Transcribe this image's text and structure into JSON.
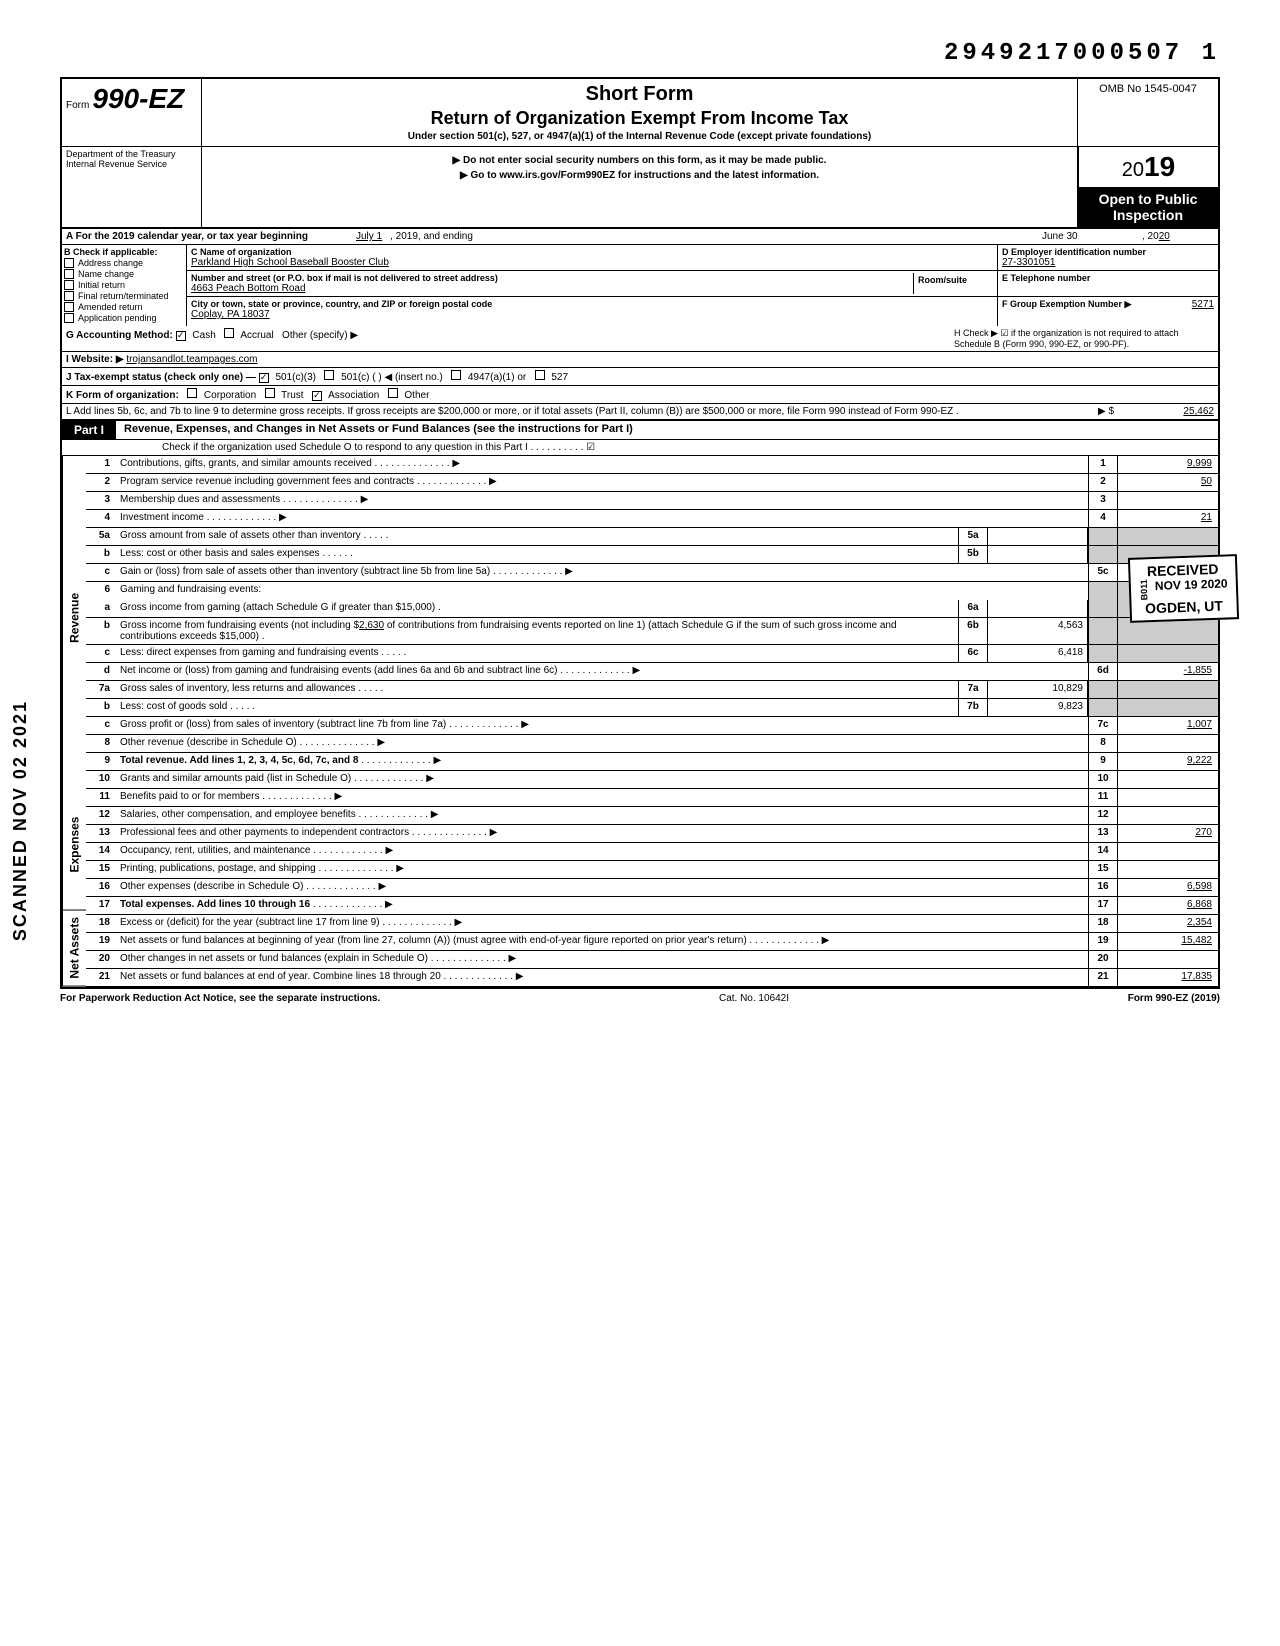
{
  "doc_number": "2949217000507 1",
  "form": {
    "prefix": "Form",
    "number": "990-EZ",
    "short_form": "Short Form",
    "title": "Return of Organization Exempt From Income Tax",
    "section_text": "Under section 501(c), 527, or 4947(a)(1) of the Internal Revenue Code (except private foundations)",
    "ssn_warning": "Do not enter social security numbers on this form, as it may be made public.",
    "goto_text": "Go to www.irs.gov/Form990EZ for instructions and the latest information.",
    "omb": "OMB No 1545-0047",
    "year": "2019",
    "open_public": "Open to Public Inspection",
    "dept": "Department of the Treasury",
    "irs": "Internal Revenue Service"
  },
  "row_a": {
    "label": "A For the 2019 calendar year, or tax year beginning",
    "begin": "July 1",
    "mid": ", 2019, and ending",
    "end_month": "June 30",
    "end_year_prefix": ", 20",
    "end_year": "20"
  },
  "section_b": {
    "header": "B Check if applicable:",
    "items": [
      "Address change",
      "Name change",
      "Initial return",
      "Final return/terminated",
      "Amended return",
      "Application pending"
    ]
  },
  "section_c": {
    "name_label": "C Name of organization",
    "name": "Parkland High School Baseball Booster Club",
    "street_label": "Number and street (or P.O. box if mail is not delivered to street address)",
    "street": "4663 Peach Bottom Road",
    "city_label": "City or town, state or province, country, and ZIP or foreign postal code",
    "city": "Coplay, PA 18037",
    "room_suite": "Room/suite"
  },
  "section_d": {
    "ein_label": "D Employer identification number",
    "ein": "27-3301051",
    "phone_label": "E Telephone number",
    "group_label": "F Group Exemption Number ▶",
    "group": "5271"
  },
  "row_g": {
    "label": "G Accounting Method:",
    "cash": "Cash",
    "accrual": "Accrual",
    "other": "Other (specify) ▶"
  },
  "row_h": {
    "text": "H Check ▶ ☑ if the organization is not required to attach Schedule B (Form 990, 990-EZ, or 990-PF)."
  },
  "row_i": {
    "label": "I Website: ▶",
    "value": "trojansandlot.teampages.com"
  },
  "row_j": {
    "label": "J Tax-exempt status (check only one) —",
    "opt1": "501(c)(3)",
    "opt2": "501(c) (",
    "opt2b": ") ◀ (insert no.)",
    "opt3": "4947(a)(1) or",
    "opt4": "527"
  },
  "row_k": {
    "label": "K Form of organization:",
    "corp": "Corporation",
    "trust": "Trust",
    "assoc": "Association",
    "other": "Other"
  },
  "row_l": {
    "text": "L Add lines 5b, 6c, and 7b to line 9 to determine gross receipts. If gross receipts are $200,000 or more, or if total assets (Part II, column (B)) are $500,000 or more, file Form 990 instead of Form 990-EZ .",
    "arrow": "▶ $",
    "value": "25,462"
  },
  "part1": {
    "label": "Part I",
    "title": "Revenue, Expenses, and Changes in Net Assets or Fund Balances (see the instructions for Part I)",
    "schedule_o": "Check if the organization used Schedule O to respond to any question in this Part I . . . . . . . . . . ☑"
  },
  "revenue_label": "Revenue",
  "expenses_label": "Expenses",
  "net_assets_label": "Net Assets",
  "lines": {
    "l1": {
      "num": "1",
      "desc": "Contributions, gifts, grants, and similar amounts received .",
      "rn": "1",
      "rv": "9,999"
    },
    "l2": {
      "num": "2",
      "desc": "Program service revenue including government fees and contracts",
      "rn": "2",
      "rv": "50"
    },
    "l3": {
      "num": "3",
      "desc": "Membership dues and assessments .",
      "rn": "3",
      "rv": ""
    },
    "l4": {
      "num": "4",
      "desc": "Investment income",
      "rn": "4",
      "rv": "21"
    },
    "l5a": {
      "num": "5a",
      "desc": "Gross amount from sale of assets other than inventory",
      "mn": "5a",
      "mv": ""
    },
    "l5b": {
      "num": "b",
      "desc": "Less: cost or other basis and sales expenses .",
      "mn": "5b",
      "mv": ""
    },
    "l5c": {
      "num": "c",
      "desc": "Gain or (loss) from sale of assets other than inventory (subtract line 5b from line 5a)",
      "rn": "5c",
      "rv": ""
    },
    "l6": {
      "num": "6",
      "desc": "Gaming and fundraising events:"
    },
    "l6a": {
      "num": "a",
      "desc": "Gross income from gaming (attach Schedule G if greater than $15,000) .",
      "mn": "6a",
      "mv": ""
    },
    "l6b": {
      "num": "b",
      "desc_pre": "Gross income from fundraising events (not including $",
      "desc_val": "2,630",
      "desc_post": " of contributions from fundraising events reported on line 1) (attach Schedule G if the sum of such gross income and contributions exceeds $15,000) .",
      "mn": "6b",
      "mv": "4,563"
    },
    "l6c": {
      "num": "c",
      "desc": "Less: direct expenses from gaming and fundraising events",
      "mn": "6c",
      "mv": "6,418"
    },
    "l6d": {
      "num": "d",
      "desc": "Net income or (loss) from gaming and fundraising events (add lines 6a and 6b and subtract line 6c)",
      "rn": "6d",
      "rv": "-1,855"
    },
    "l7a": {
      "num": "7a",
      "desc": "Gross sales of inventory, less returns and allowances",
      "mn": "7a",
      "mv": "10,829"
    },
    "l7b": {
      "num": "b",
      "desc": "Less: cost of goods sold",
      "mn": "7b",
      "mv": "9,823"
    },
    "l7c": {
      "num": "c",
      "desc": "Gross profit or (loss) from sales of inventory (subtract line 7b from line 7a)",
      "rn": "7c",
      "rv": "1,007"
    },
    "l8": {
      "num": "8",
      "desc": "Other revenue (describe in Schedule O) .",
      "rn": "8",
      "rv": ""
    },
    "l9": {
      "num": "9",
      "desc": "Total revenue. Add lines 1, 2, 3, 4, 5c, 6d, 7c, and 8",
      "rn": "9",
      "rv": "9,222"
    },
    "l10": {
      "num": "10",
      "desc": "Grants and similar amounts paid (list in Schedule O)",
      "rn": "10",
      "rv": ""
    },
    "l11": {
      "num": "11",
      "desc": "Benefits paid to or for members",
      "rn": "11",
      "rv": ""
    },
    "l12": {
      "num": "12",
      "desc": "Salaries, other compensation, and employee benefits",
      "rn": "12",
      "rv": ""
    },
    "l13": {
      "num": "13",
      "desc": "Professional fees and other payments to independent contractors .",
      "rn": "13",
      "rv": "270"
    },
    "l14": {
      "num": "14",
      "desc": "Occupancy, rent, utilities, and maintenance",
      "rn": "14",
      "rv": ""
    },
    "l15": {
      "num": "15",
      "desc": "Printing, publications, postage, and shipping .",
      "rn": "15",
      "rv": ""
    },
    "l16": {
      "num": "16",
      "desc": "Other expenses (describe in Schedule O)",
      "rn": "16",
      "rv": "6,598"
    },
    "l17": {
      "num": "17",
      "desc": "Total expenses. Add lines 10 through 16",
      "rn": "17",
      "rv": "6,868"
    },
    "l18": {
      "num": "18",
      "desc": "Excess or (deficit) for the year (subtract line 17 from line 9)",
      "rn": "18",
      "rv": "2,354"
    },
    "l19": {
      "num": "19",
      "desc": "Net assets or fund balances at beginning of year (from line 27, column (A)) (must agree with end-of-year figure reported on prior year's return)",
      "rn": "19",
      "rv": "15,482"
    },
    "l20": {
      "num": "20",
      "desc": "Other changes in net assets or fund balances (explain in Schedule O) .",
      "rn": "20",
      "rv": ""
    },
    "l21": {
      "num": "21",
      "desc": "Net assets or fund balances at end of year. Combine lines 18 through 20",
      "rn": "21",
      "rv": "17,835"
    }
  },
  "received": {
    "title": "RECEIVED",
    "date": "NOV 19 2020",
    "loc": "OGDEN, UT",
    "code": "B011"
  },
  "scanned": "SCANNED NOV 02 2021",
  "footer": {
    "left": "For Paperwork Reduction Act Notice, see the separate instructions.",
    "mid": "Cat. No. 10642I",
    "right": "Form 990-EZ (2019)"
  }
}
